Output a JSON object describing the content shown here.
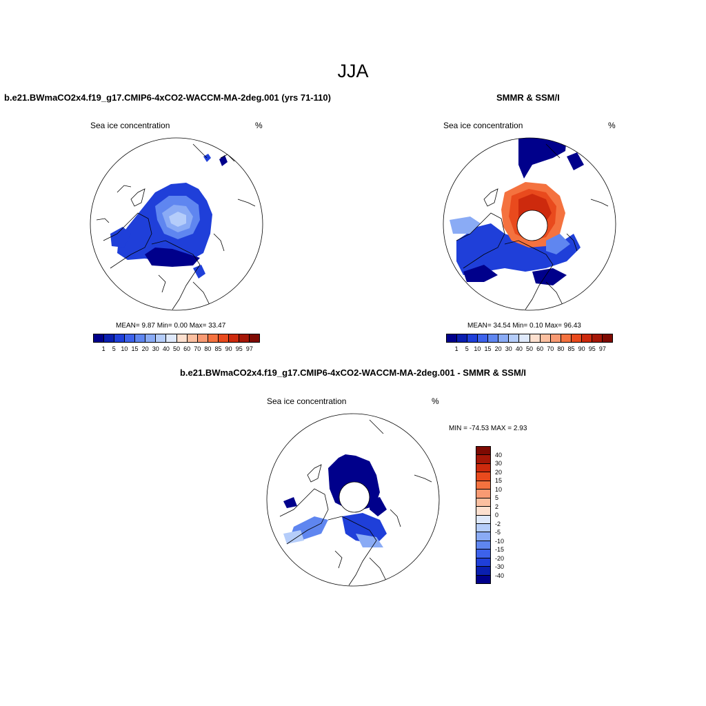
{
  "figure": {
    "title": "JJA"
  },
  "panels": {
    "model": {
      "header": "b.e21.BWmaCO2x4.f19_g17.CMIP6-4xCO2-WACCM-MA-2deg.001 (yrs 71-110)",
      "left_label": "Sea ice concentration",
      "right_label": "%",
      "stats": "MEAN=   9.87  Min=   0.00  Max=  33.47"
    },
    "obs": {
      "header": "SMMR & SSM/I",
      "left_label": "Sea ice concentration",
      "right_label": "%",
      "stats": "MEAN=  34.54  Min=   0.10  Max=  96.43"
    },
    "diff": {
      "header": "b.e21.BWmaCO2x4.f19_g17.CMIP6-4xCO2-WACCM-MA-2deg.001 - SMMR & SSM/I",
      "left_label": "Sea ice concentration",
      "right_label": "%",
      "stats": "MIN = -74.53 MAX =   2.93"
    }
  },
  "colorbars": {
    "horizontal_ticks": [
      "1",
      "5",
      "10",
      "15",
      "20",
      "30",
      "40",
      "50",
      "60",
      "70",
      "80",
      "85",
      "90",
      "95",
      "97"
    ],
    "horizontal_colors": [
      "#00008b",
      "#0a1fb0",
      "#1f3fd9",
      "#3d62eb",
      "#5f86f0",
      "#8aabf5",
      "#b5cdfa",
      "#dfe9fb",
      "#fde0cf",
      "#fbbfa0",
      "#f89a73",
      "#f4723f",
      "#e94a1d",
      "#cd2a0d",
      "#a51707",
      "#7e0a02"
    ],
    "vertical_ticks": [
      "40",
      "30",
      "20",
      "15",
      "10",
      "5",
      "2",
      "0",
      "-2",
      "-5",
      "-10",
      "-15",
      "-20",
      "-30",
      "-40"
    ],
    "vertical_colors": [
      "#7e0a02",
      "#a51707",
      "#cd2a0d",
      "#e94a1d",
      "#f4723f",
      "#f89a73",
      "#fbbfa0",
      "#fde0cf",
      "#dfe9fb",
      "#b5cdfa",
      "#8aabf5",
      "#5f86f0",
      "#3d62eb",
      "#1f3fd9",
      "#0a1fb0",
      "#00008b"
    ]
  }
}
